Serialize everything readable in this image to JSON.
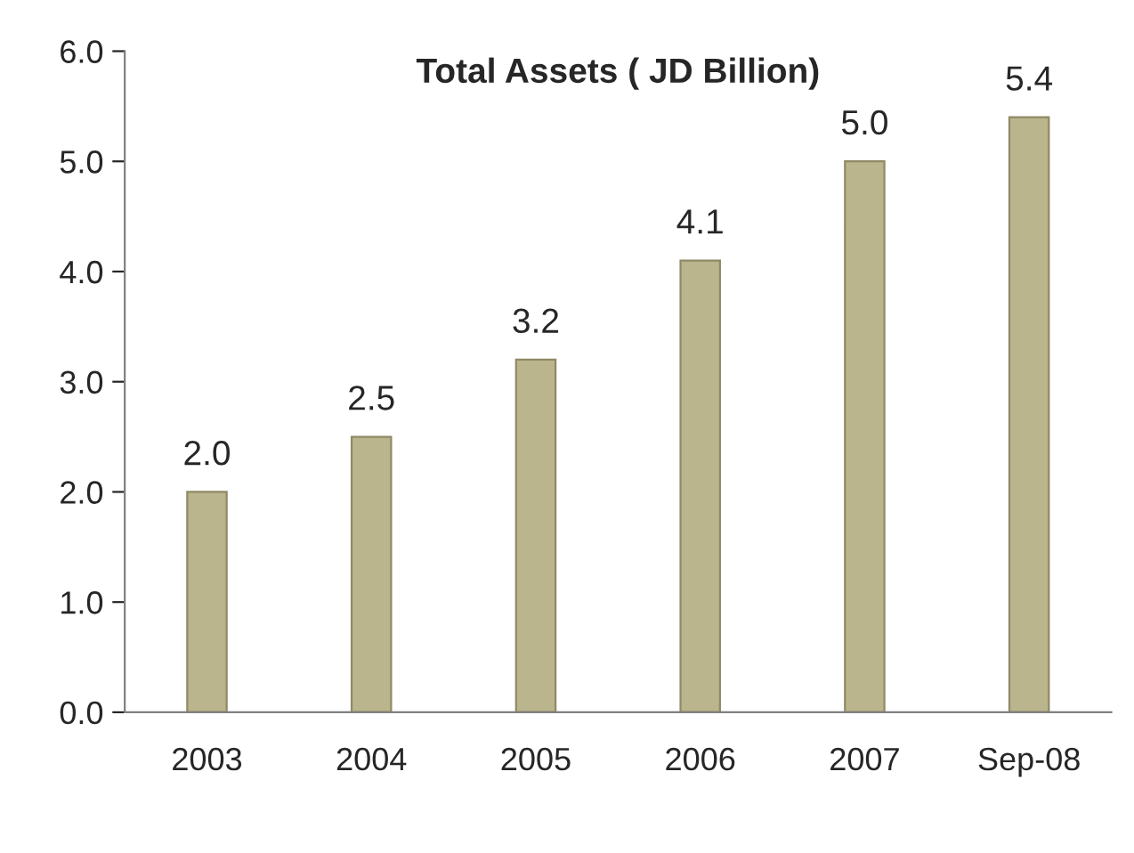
{
  "chart_data": {
    "type": "bar",
    "title": "Total Assets ( JD Billion)",
    "categories": [
      "2003",
      "2004",
      "2005",
      "2006",
      "2007",
      "Sep-08"
    ],
    "values": [
      2.0,
      2.5,
      3.2,
      4.1,
      5.0,
      5.4
    ],
    "value_labels": [
      "2.0",
      "2.5",
      "3.2",
      "4.1",
      "5.0",
      "5.4"
    ],
    "color": "#bab58c",
    "ylim": [
      0,
      6
    ],
    "yticks": [
      {
        "value": 0,
        "label": "0.0"
      },
      {
        "value": 1,
        "label": "1.0"
      },
      {
        "value": 2,
        "label": "2.0"
      },
      {
        "value": 3,
        "label": "3.0"
      },
      {
        "value": 4,
        "label": "4.0"
      },
      {
        "value": 5,
        "label": "5.0"
      },
      {
        "value": 6,
        "label": "6.0"
      }
    ],
    "grid": false,
    "legend": false
  }
}
